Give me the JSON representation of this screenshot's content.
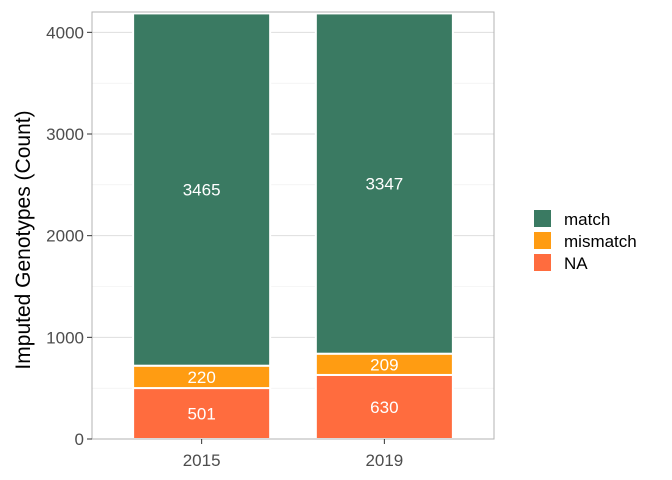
{
  "chart_data": {
    "type": "bar",
    "stacked": true,
    "categories": [
      "2015",
      "2019"
    ],
    "series": [
      {
        "name": "NA",
        "values": [
          501,
          630
        ],
        "color": "#ff6c3e"
      },
      {
        "name": "mismatch",
        "values": [
          220,
          209
        ],
        "color": "#ff9c12"
      },
      {
        "name": "match",
        "values": [
          3465,
          3347
        ],
        "color": "#3a7a62"
      }
    ],
    "ylabel": "Imputed Genotypes (Count)",
    "xlabel": "",
    "title": "",
    "ylim": [
      0,
      4200
    ],
    "yticks": [
      0,
      1000,
      2000,
      3000,
      4000
    ],
    "grid": true,
    "legend_position": "right",
    "legend_order": [
      "match",
      "mismatch",
      "NA"
    ]
  }
}
